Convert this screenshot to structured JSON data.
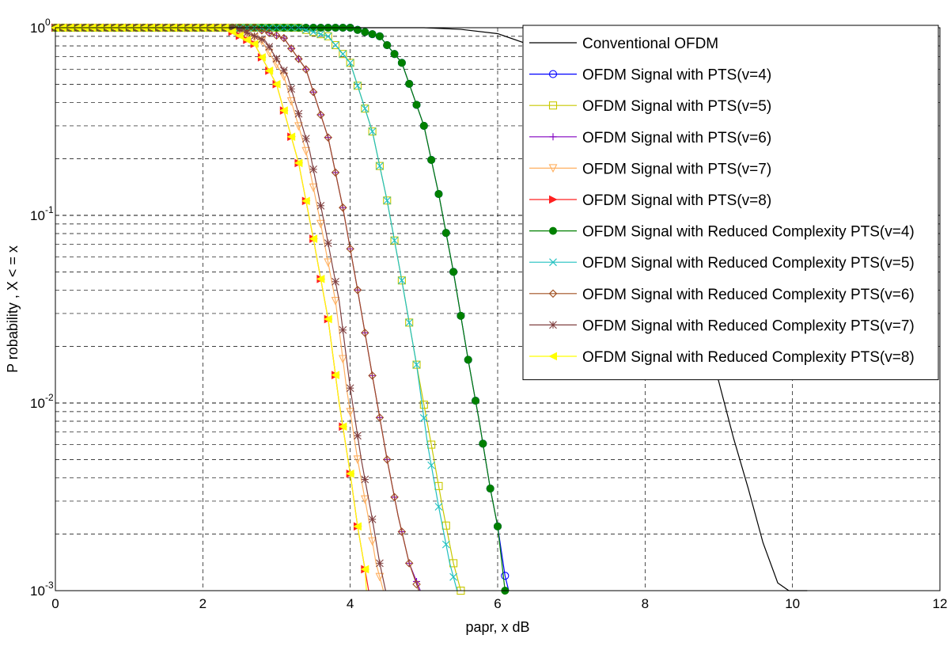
{
  "chart_data": {
    "type": "line",
    "title": "",
    "xlabel": "papr, x dB",
    "ylabel": "P robability , X  < = x",
    "xlim": [
      0,
      12
    ],
    "ylim": [
      0.001,
      1
    ],
    "y_scale": "log",
    "grid": true,
    "x_ticks": [
      "0",
      "2",
      "4",
      "6",
      "8",
      "10",
      "12"
    ],
    "y_ticks": [
      {
        "base": "10",
        "exp": "0",
        "value": 1
      },
      {
        "base": "10",
        "exp": "-1",
        "value": 0.1
      },
      {
        "base": "10",
        "exp": "-2",
        "value": 0.01
      },
      {
        "base": "10",
        "exp": "-3",
        "value": 0.001
      }
    ],
    "legend_position": "top-right",
    "series": [
      {
        "name": "Conventional OFDM",
        "color": "#000000",
        "marker": "none",
        "x": [
          0,
          5,
          5.5,
          6,
          6.4,
          6.8,
          7.2,
          7.6,
          8.0,
          8.4,
          8.8,
          9.0,
          9.2,
          9.4,
          9.6,
          9.8,
          9.95,
          10.2
        ],
        "y": [
          1,
          1,
          0.98,
          0.93,
          0.82,
          0.66,
          0.48,
          0.3,
          0.16,
          0.07,
          0.025,
          0.013,
          0.0065,
          0.0035,
          0.0018,
          0.0011,
          0.001,
          0.001
        ]
      },
      {
        "name": "OFDM Signal with PTS(v=4)",
        "color": "#0000ff",
        "marker": "circle",
        "x": [
          0,
          4.0,
          4.4,
          4.7,
          5.0,
          5.2,
          5.4,
          5.6,
          5.75,
          5.9,
          6.0,
          6.1,
          6.15
        ],
        "y": [
          1,
          1,
          0.9,
          0.65,
          0.3,
          0.13,
          0.05,
          0.017,
          0.008,
          0.0035,
          0.0022,
          0.0012,
          0.001
        ]
      },
      {
        "name": "OFDM Signal with PTS(v=5)",
        "color": "#c8c800",
        "marker": "square",
        "x": [
          0,
          3.3,
          3.7,
          4.0,
          4.3,
          4.5,
          4.7,
          4.9,
          5.1,
          5.25,
          5.4,
          5.5
        ],
        "y": [
          1,
          1,
          0.9,
          0.65,
          0.28,
          0.12,
          0.045,
          0.016,
          0.006,
          0.0028,
          0.0014,
          0.001
        ]
      },
      {
        "name": "OFDM Signal with PTS(v=6)",
        "color": "#8000c0",
        "marker": "plus",
        "x": [
          0,
          2.7,
          3.1,
          3.4,
          3.7,
          3.9,
          4.1,
          4.3,
          4.5,
          4.65,
          4.8,
          4.95
        ],
        "y": [
          1,
          1,
          0.88,
          0.6,
          0.26,
          0.11,
          0.04,
          0.014,
          0.005,
          0.0025,
          0.0014,
          0.001
        ]
      },
      {
        "name": "OFDM Signal with  PTS(v=7)",
        "color": "#ffb060",
        "marker": "triangle-down",
        "x": [
          0,
          2.4,
          2.8,
          3.1,
          3.4,
          3.6,
          3.8,
          3.95,
          4.1,
          4.25,
          4.35,
          4.45
        ],
        "y": [
          1,
          1,
          0.85,
          0.55,
          0.22,
          0.09,
          0.035,
          0.012,
          0.005,
          0.0024,
          0.0014,
          0.001
        ]
      },
      {
        "name": "OFDM Signal with PTS(v=8)",
        "color": "#ff2020",
        "marker": "triangle-right",
        "x": [
          0,
          2.3,
          2.7,
          3.0,
          3.3,
          3.5,
          3.7,
          3.85,
          4.0,
          4.1,
          4.2,
          4.25
        ],
        "y": [
          1,
          1,
          0.82,
          0.5,
          0.19,
          0.075,
          0.028,
          0.01,
          0.0042,
          0.0022,
          0.0013,
          0.001
        ]
      },
      {
        "name": "OFDM Signal with Reduced Complexity PTS(v=4)",
        "color": "#008000",
        "marker": "filled-circle",
        "x": [
          0,
          4.0,
          4.4,
          4.7,
          5.0,
          5.2,
          5.4,
          5.6,
          5.75,
          5.9,
          6.0,
          6.1
        ],
        "y": [
          1,
          1,
          0.9,
          0.65,
          0.3,
          0.13,
          0.05,
          0.017,
          0.008,
          0.0035,
          0.0022,
          0.001
        ]
      },
      {
        "name": "OFDM Signal with Reduced Complexity PTS(v=5)",
        "color": "#20c0c0",
        "marker": "x",
        "x": [
          0,
          3.3,
          3.7,
          4.0,
          4.3,
          4.5,
          4.7,
          4.9,
          5.05,
          5.2,
          5.35,
          5.45
        ],
        "y": [
          1,
          1,
          0.9,
          0.65,
          0.28,
          0.12,
          0.045,
          0.016,
          0.006,
          0.0028,
          0.0014,
          0.001
        ]
      },
      {
        "name": "OFDM Signal with Reduced Complexity PTS(v=6)",
        "color": "#a05020",
        "marker": "diamond",
        "x": [
          0,
          2.7,
          3.1,
          3.4,
          3.7,
          3.9,
          4.1,
          4.3,
          4.5,
          4.65,
          4.8,
          4.93
        ],
        "y": [
          1,
          1,
          0.88,
          0.6,
          0.26,
          0.11,
          0.04,
          0.014,
          0.005,
          0.0025,
          0.0014,
          0.001
        ]
      },
      {
        "name": "OFDM Signal with Reduced Complexity PTS(v=7)",
        "color": "#804040",
        "marker": "star",
        "x": [
          0,
          2.45,
          2.85,
          3.15,
          3.45,
          3.65,
          3.85,
          4.0,
          4.15,
          4.3,
          4.4,
          4.48
        ],
        "y": [
          1,
          1,
          0.85,
          0.55,
          0.22,
          0.09,
          0.035,
          0.012,
          0.005,
          0.0024,
          0.0014,
          0.001
        ]
      },
      {
        "name": "OFDM Signal with Reduced Complexity PTS(v=8)",
        "color": "#ffff00",
        "marker": "triangle-left",
        "x": [
          0,
          2.3,
          2.7,
          3.0,
          3.3,
          3.5,
          3.7,
          3.85,
          4.0,
          4.1,
          4.2,
          4.22
        ],
        "y": [
          1,
          1,
          0.82,
          0.5,
          0.19,
          0.075,
          0.028,
          0.01,
          0.0042,
          0.0022,
          0.0013,
          0.001
        ]
      }
    ]
  }
}
